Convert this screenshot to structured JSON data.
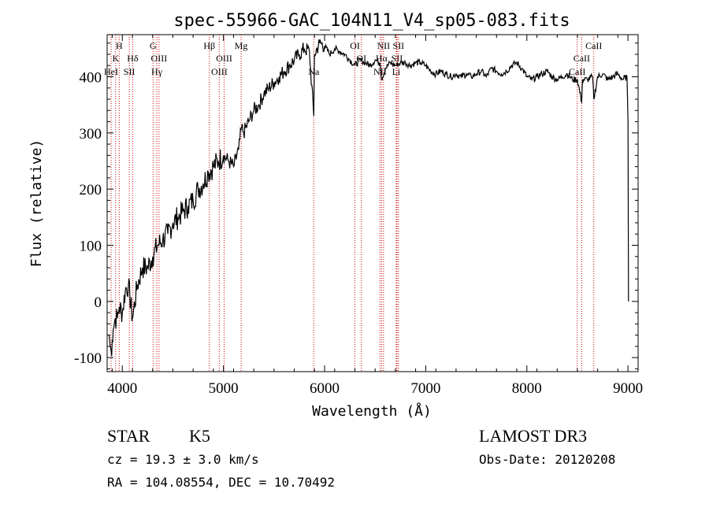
{
  "chart_data": {
    "type": "line",
    "title": "spec-55966-GAC_104N11_V4_sp05-083.fits",
    "xlabel": "Wavelength (Å)",
    "ylabel": "Flux (relative)",
    "xlim": [
      3850,
      9100
    ],
    "ylim": [
      -125,
      475
    ],
    "xticks": [
      4000,
      5000,
      6000,
      7000,
      8000,
      9000
    ],
    "yticks": [
      -100,
      0,
      100,
      200,
      300,
      400
    ],
    "series": [
      {
        "name": "flux",
        "x": [
          3870,
          3880,
          3890,
          3900,
          3910,
          3930,
          3950,
          3970,
          4000,
          4030,
          4060,
          4100,
          4150,
          4200,
          4250,
          4300,
          4350,
          4400,
          4450,
          4500,
          4550,
          4600,
          4650,
          4700,
          4750,
          4800,
          4850,
          4900,
          4950,
          5000,
          5050,
          5100,
          5150,
          5180,
          5200,
          5250,
          5300,
          5350,
          5400,
          5450,
          5500,
          5550,
          5600,
          5650,
          5700,
          5750,
          5800,
          5850,
          5893,
          5900,
          5950,
          6000,
          6050,
          6100,
          6150,
          6200,
          6250,
          6300,
          6350,
          6400,
          6450,
          6500,
          6550,
          6563,
          6600,
          6650,
          6700,
          6750,
          6800,
          6850,
          6900,
          6950,
          7000,
          7050,
          7100,
          7150,
          7200,
          7250,
          7300,
          7350,
          7400,
          7450,
          7500,
          7550,
          7600,
          7650,
          7700,
          7750,
          7800,
          7850,
          7900,
          7950,
          8000,
          8050,
          8100,
          8150,
          8200,
          8250,
          8300,
          8350,
          8400,
          8450,
          8500,
          8542,
          8550,
          8600,
          8650,
          8662,
          8700,
          8750,
          8800,
          8850,
          8900,
          8950,
          8990,
          9000,
          9005
        ],
        "y": [
          -60,
          -80,
          -90,
          -70,
          -50,
          -30,
          -30,
          -10,
          -20,
          20,
          30,
          -30,
          30,
          60,
          60,
          80,
          100,
          110,
          120,
          140,
          150,
          160,
          170,
          180,
          200,
          210,
          230,
          240,
          250,
          260,
          250,
          240,
          270,
          310,
          300,
          320,
          340,
          350,
          370,
          380,
          390,
          400,
          410,
          420,
          430,
          440,
          450,
          445,
          330,
          440,
          460,
          455,
          440,
          450,
          445,
          440,
          430,
          420,
          430,
          425,
          420,
          430,
          425,
          395,
          415,
          425,
          420,
          425,
          425,
          420,
          425,
          425,
          420,
          410,
          405,
          410,
          405,
          400,
          405,
          400,
          405,
          400,
          405,
          410,
          400,
          415,
          410,
          405,
          410,
          420,
          425,
          415,
          400,
          395,
          400,
          405,
          410,
          400,
          395,
          400,
          405,
          395,
          395,
          355,
          395,
          395,
          400,
          360,
          400,
          405,
          395,
          400,
          405,
          395,
          400,
          320,
          0
        ]
      }
    ],
    "lines": [
      {
        "name": "HeI",
        "x": 3889,
        "row": 3
      },
      {
        "name": "K",
        "x": 3934,
        "row": 2
      },
      {
        "name": "H",
        "x": 3969,
        "row": 1
      },
      {
        "name": "SII",
        "x": 4069,
        "row": 3
      },
      {
        "name": "Hδ",
        "x": 4102,
        "row": 2
      },
      {
        "name": "G",
        "x": 4304,
        "row": 1
      },
      {
        "name": "Hγ",
        "x": 4341,
        "row": 3
      },
      {
        "name": "OIII",
        "x": 4363,
        "row": 2
      },
      {
        "name": "Hβ",
        "x": 4861,
        "row": 1
      },
      {
        "name": "OIII",
        "x": 4959,
        "row": 3
      },
      {
        "name": "OIII",
        "x": 5007,
        "row": 2
      },
      {
        "name": "Mg",
        "x": 5175,
        "row": 1
      },
      {
        "name": "Na",
        "x": 5893,
        "row": 3
      },
      {
        "name": "OI",
        "x": 6300,
        "row": 1
      },
      {
        "name": "OI",
        "x": 6364,
        "row": 2
      },
      {
        "name": "NII",
        "x": 6548,
        "row": 3
      },
      {
        "name": "Hα",
        "x": 6563,
        "row": 2
      },
      {
        "name": "NII",
        "x": 6583,
        "row": 1
      },
      {
        "name": "Li",
        "x": 6708,
        "row": 3
      },
      {
        "name": "SII",
        "x": 6716,
        "row": 2
      },
      {
        "name": "SII",
        "x": 6731,
        "row": 1
      },
      {
        "name": "CaII",
        "x": 8498,
        "row": 3
      },
      {
        "name": "CaII",
        "x": 8542,
        "row": 2
      },
      {
        "name": "CaII",
        "x": 8662,
        "row": 1
      }
    ]
  },
  "info": {
    "object_type": "STAR",
    "subclass": "K5",
    "redshift": "cz = 19.3 ± 3.0 km/s",
    "coords": "RA = 104.08554, DEC =  10.70492",
    "survey": "LAMOST DR3",
    "obs_date": "Obs-Date: 20120208"
  },
  "colors": {
    "line_marker": "#cc0000",
    "spectrum": "#000000"
  }
}
